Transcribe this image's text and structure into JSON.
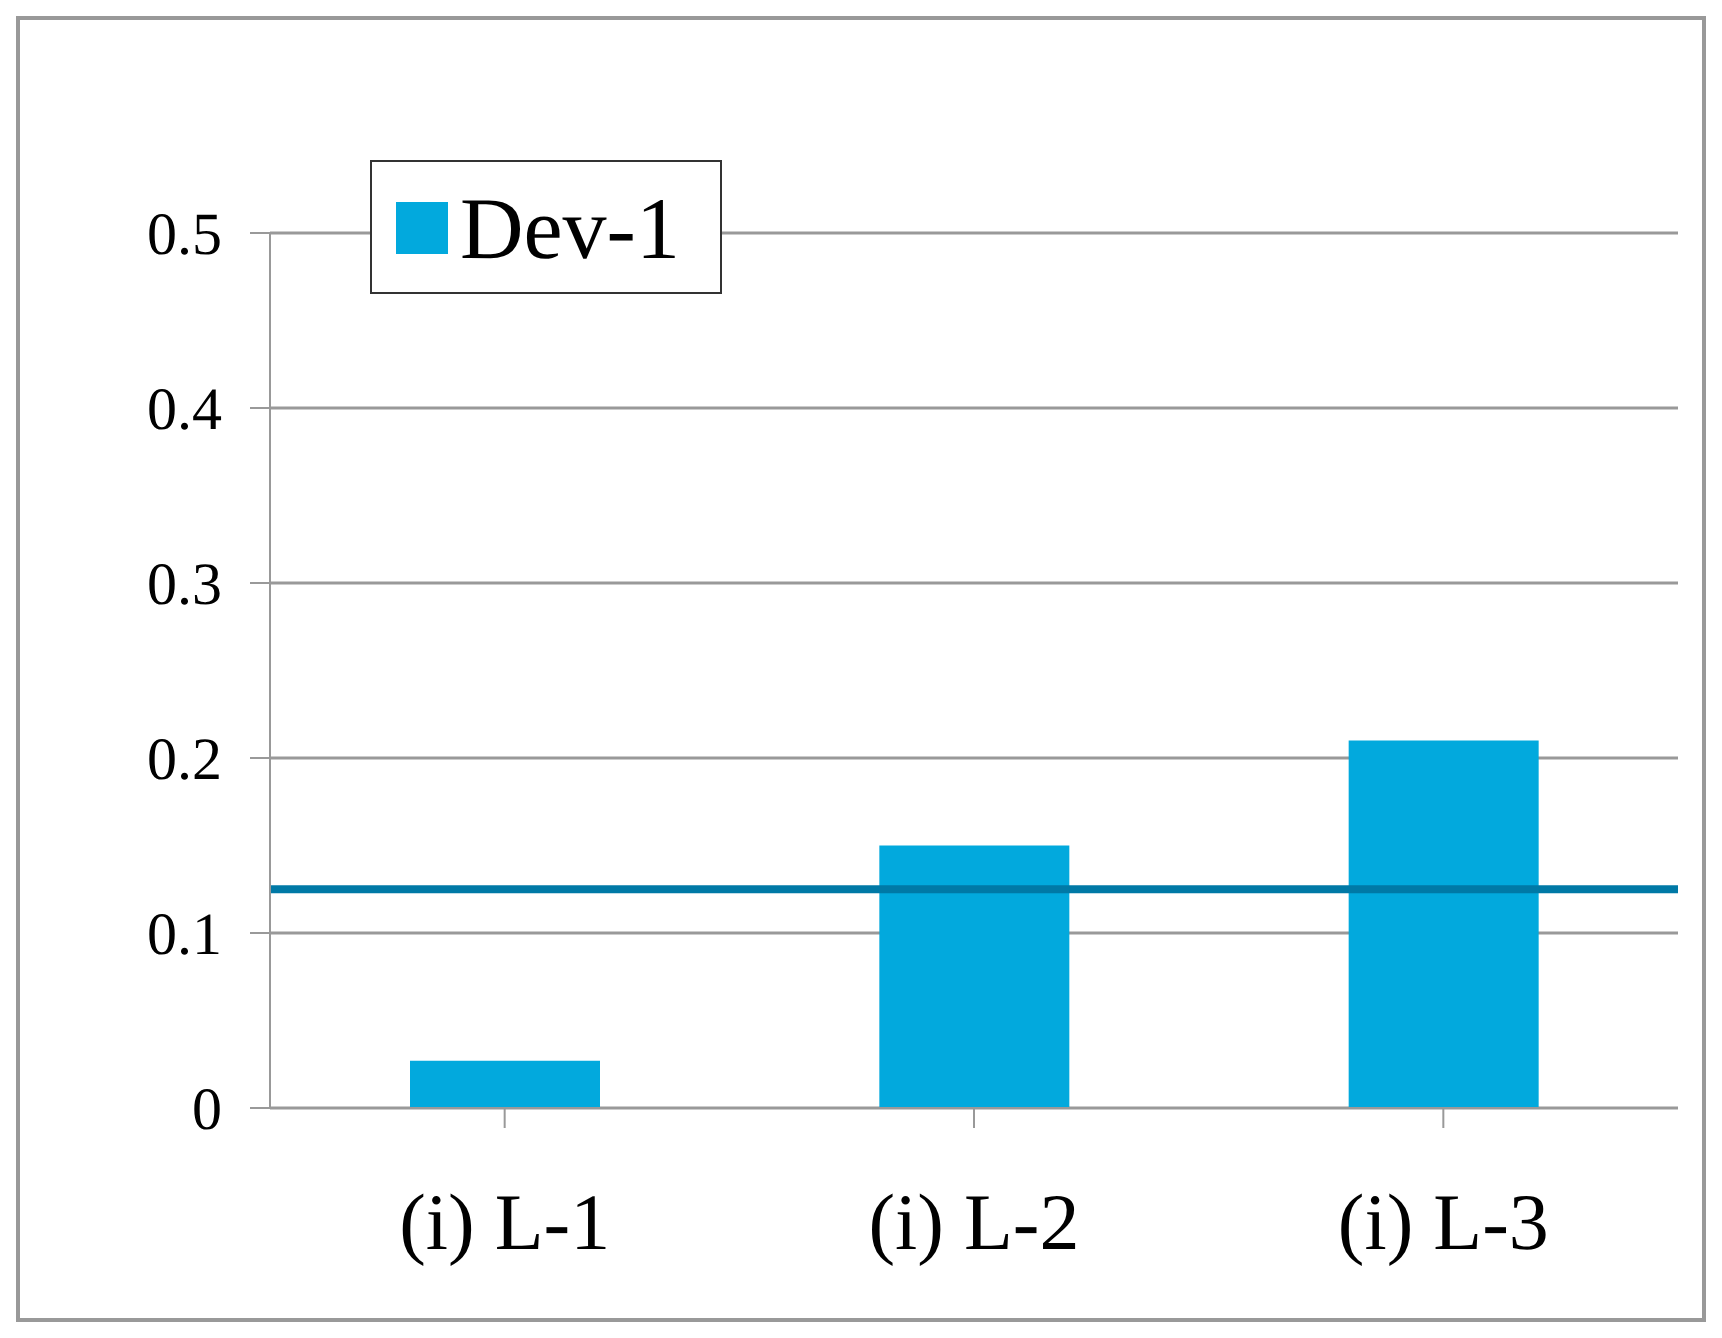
{
  "chart_data": {
    "type": "bar",
    "categories": [
      "(i) L-1",
      "(i) L-2",
      "(i) L-3"
    ],
    "series": [
      {
        "name": "Dev-1",
        "color": "#02a9dd",
        "values": [
          0.027,
          0.15,
          0.21
        ]
      }
    ],
    "ylim": [
      0,
      0.5
    ],
    "yticks": [
      0,
      0.1,
      0.2,
      0.3,
      0.4,
      0.5
    ],
    "grid": "y",
    "legend": "top left",
    "ref_lines": [
      {
        "axis": "y",
        "value": 0.125,
        "color": "#0079a6"
      }
    ]
  }
}
